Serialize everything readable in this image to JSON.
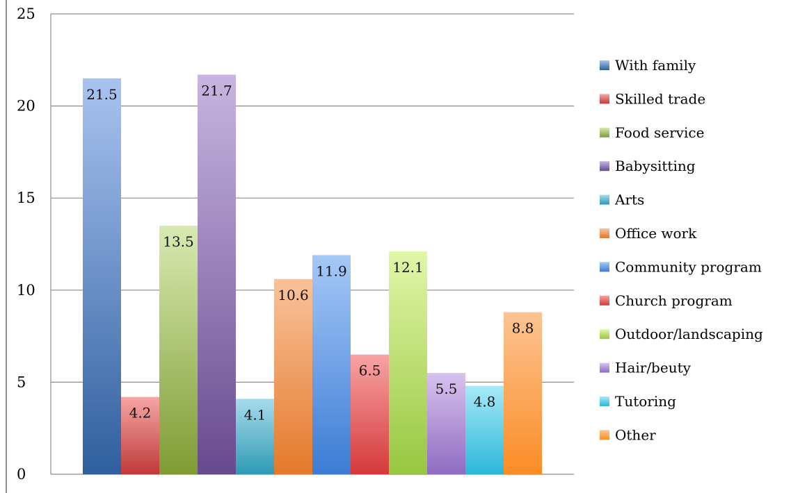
{
  "chart_data": {
    "type": "bar",
    "title": "",
    "xlabel": "",
    "ylabel": "",
    "ylim": [
      0,
      25
    ],
    "yticks": [
      0,
      5,
      10,
      15,
      20,
      25
    ],
    "grid": "horizontal",
    "legend_position": "right",
    "categories": [
      "With family",
      "Skilled trade",
      "Food service",
      "Babysitting",
      "Arts",
      "Office work",
      "Community program",
      "Church program",
      "Outdoor/landscaping",
      "Hair/beuty",
      "Tutoring",
      "Other"
    ],
    "values": [
      21.5,
      4.2,
      13.5,
      21.7,
      4.1,
      10.6,
      11.9,
      6.5,
      12.1,
      5.5,
      4.8,
      8.8
    ],
    "data_labels": [
      "21.5",
      "4.2",
      "13.5",
      "21.7",
      "4.1",
      "10.6",
      "11.9",
      "6.5",
      "12.1",
      "5.5",
      "4.8",
      "8.8"
    ],
    "colors": [
      [
        "#a9c3f0",
        "#2f5f9e"
      ],
      [
        "#f6a6a4",
        "#c0393a"
      ],
      [
        "#d9eab1",
        "#7e9c33"
      ],
      [
        "#c8b5e1",
        "#674a8e"
      ],
      [
        "#a7dceb",
        "#2e9ab5"
      ],
      [
        "#f9c29b",
        "#e4792b"
      ],
      [
        "#a6c8f8",
        "#3b7cd4"
      ],
      [
        "#f8a3a3",
        "#d4393b"
      ],
      [
        "#e2f6a8",
        "#97c740"
      ],
      [
        "#d8c2ef",
        "#8f6bc2"
      ],
      [
        "#a6e9f7",
        "#2cb7d9"
      ],
      [
        "#fcc493",
        "#fb8c25"
      ]
    ]
  }
}
